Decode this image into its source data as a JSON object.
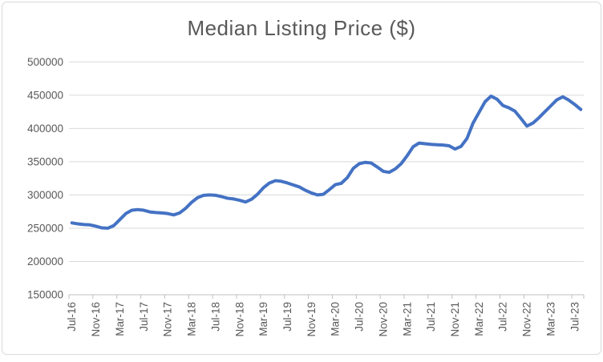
{
  "chart_data": {
    "type": "line",
    "title": "Median Listing Price ($)",
    "legend": "none",
    "grid": "horizontal",
    "ylim": [
      150000,
      500000
    ],
    "y_tick_step": 50000,
    "y_tick_labels": [
      "150000",
      "200000",
      "250000",
      "300000",
      "350000",
      "400000",
      "450000",
      "500000"
    ],
    "x_tick_labels": [
      "Jul-16",
      "Nov-16",
      "Mar-17",
      "Jul-17",
      "Nov-17",
      "Mar-18",
      "Jul-18",
      "Nov-18",
      "Mar-19",
      "Jul-19",
      "Nov-19",
      "Mar-20",
      "Jul-20",
      "Nov-20",
      "Mar-21",
      "Jul-21",
      "Nov-21",
      "Mar-22",
      "Jul-22",
      "Nov-22",
      "Mar-23",
      "Jul-23"
    ],
    "x_tick_interval_months": 4,
    "x": [
      "Jul-16",
      "Aug-16",
      "Sep-16",
      "Oct-16",
      "Nov-16",
      "Dec-16",
      "Jan-17",
      "Feb-17",
      "Mar-17",
      "Apr-17",
      "May-17",
      "Jun-17",
      "Jul-17",
      "Aug-17",
      "Sep-17",
      "Oct-17",
      "Nov-17",
      "Dec-17",
      "Jan-18",
      "Feb-18",
      "Mar-18",
      "Apr-18",
      "May-18",
      "Jun-18",
      "Jul-18",
      "Aug-18",
      "Sep-18",
      "Oct-18",
      "Nov-18",
      "Dec-18",
      "Jan-19",
      "Feb-19",
      "Mar-19",
      "Apr-19",
      "May-19",
      "Jun-19",
      "Jul-19",
      "Aug-19",
      "Sep-19",
      "Oct-19",
      "Nov-19",
      "Dec-19",
      "Jan-20",
      "Feb-20",
      "Mar-20",
      "Apr-20",
      "May-20",
      "Jun-20",
      "Jul-20",
      "Aug-20",
      "Sep-20",
      "Oct-20",
      "Nov-20",
      "Dec-20",
      "Jan-21",
      "Feb-21",
      "Mar-21",
      "Apr-21",
      "May-21",
      "Jun-21",
      "Jul-21",
      "Aug-21",
      "Sep-21",
      "Oct-21",
      "Nov-21",
      "Dec-21",
      "Jan-22",
      "Feb-22",
      "Mar-22",
      "Apr-22",
      "May-22",
      "Jun-22",
      "Jul-22",
      "Aug-22",
      "Sep-22",
      "Oct-22",
      "Nov-22",
      "Dec-22",
      "Jan-23",
      "Feb-23",
      "Mar-23",
      "Apr-23",
      "May-23",
      "Jun-23",
      "Jul-23",
      "Aug-23"
    ],
    "series": [
      {
        "name": "Median Listing Price",
        "values": [
          258000,
          256500,
          255500,
          255000,
          253000,
          250500,
          250000,
          254000,
          263000,
          272000,
          277000,
          278000,
          277000,
          274500,
          273500,
          273000,
          272000,
          270000,
          273000,
          280000,
          289000,
          296000,
          299500,
          300000,
          299500,
          297500,
          295000,
          294000,
          292000,
          289500,
          293500,
          301000,
          311000,
          318000,
          321500,
          320500,
          318000,
          315000,
          312000,
          307000,
          303000,
          300000,
          301000,
          308000,
          315500,
          317500,
          326000,
          340000,
          347000,
          349000,
          348000,
          342000,
          335500,
          334000,
          339000,
          347000,
          359000,
          372500,
          378000,
          377000,
          376000,
          375500,
          375000,
          374000,
          369000,
          373000,
          385000,
          408000,
          424000,
          440000,
          448500,
          444000,
          434500,
          431000,
          426000,
          415000,
          403500,
          408000,
          416000,
          425000,
          434000,
          443000,
          447500,
          442500,
          436000,
          428500
        ]
      }
    ]
  },
  "colors": {
    "line": "#4472C4",
    "gridline": "#D9D9D9",
    "axis_line": "#BFBFBF",
    "tick_label": "#595959",
    "title": "#595959",
    "chart_border": "#D9D9D9",
    "background": "#FFFFFF"
  }
}
